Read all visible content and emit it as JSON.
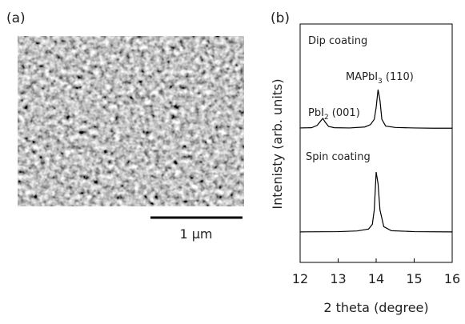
{
  "panels": {
    "a": {
      "label": "(a)",
      "scale_bar": "1 μm"
    }
  },
  "chart_data": {
    "type": "line",
    "panel_label": "(b)",
    "x_label": "2 theta (degree)",
    "y_label": "Intenisty (arb. units)",
    "xlim": [
      12,
      16
    ],
    "xticks": [
      12,
      13,
      14,
      15,
      16
    ],
    "ylim": [
      0,
      100
    ],
    "annotations": [
      {
        "parts": [
          "Dip coating"
        ]
      },
      {
        "parts": [
          "MAPbI",
          "3",
          " (110)"
        ]
      },
      {
        "parts": [
          "PbI",
          "2",
          " (001)"
        ]
      },
      {
        "parts": [
          "Spin coating"
        ]
      }
    ],
    "series": [
      {
        "color": "#000000",
        "x": [
          12.0,
          12.3,
          12.45,
          12.55,
          12.6,
          12.65,
          12.75,
          12.9,
          13.3,
          13.7,
          13.85,
          13.95,
          14.0,
          14.05,
          14.1,
          14.15,
          14.25,
          14.5,
          15.0,
          15.5,
          16.0
        ],
        "values": [
          56.4,
          56.5,
          57.5,
          59.5,
          60.4,
          59,
          57,
          56.5,
          56.4,
          56.8,
          57.8,
          60,
          65,
          72.5,
          68,
          60,
          57.2,
          56.6,
          56.4,
          56.3,
          56.3
        ]
      },
      {
        "color": "#000000",
        "x": [
          12.0,
          13.0,
          13.5,
          13.8,
          13.9,
          13.95,
          14.0,
          14.05,
          14.1,
          14.2,
          14.4,
          15.0,
          16.0
        ],
        "values": [
          12.8,
          12.9,
          13.2,
          14,
          16,
          22,
          37.9,
          33,
          22,
          15,
          13.3,
          12.9,
          12.8
        ]
      }
    ]
  }
}
